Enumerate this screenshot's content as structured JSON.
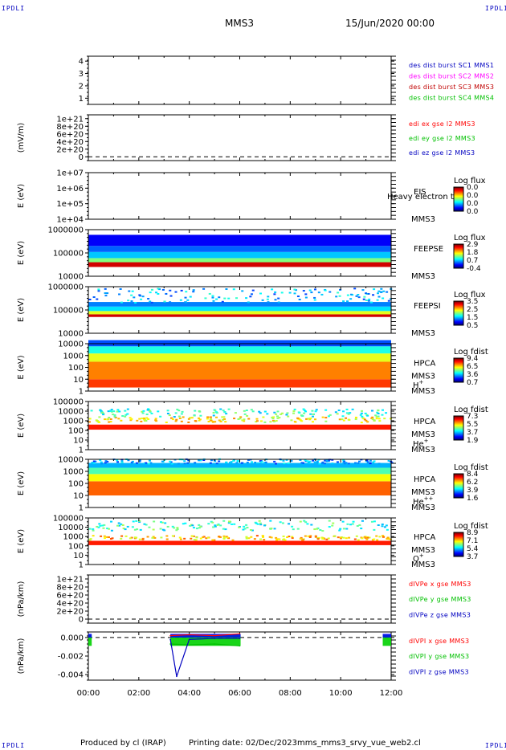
{
  "header": {
    "spacecraft": "MMS3",
    "date": "15/Jun/2020 00:00",
    "corner_label": "IPDLI"
  },
  "footer": {
    "produced_by": "Produced by cl (IRAP)",
    "printing_date": "Printing date: 02/Dec/2023",
    "script_name": "mms_mms3_srvy_vue_web2.cl"
  },
  "colors": {
    "red": "#ff0000",
    "green": "#00d000",
    "blue": "#0000ff",
    "magenta": "#ff00ff",
    "dark_red": "#c00000"
  },
  "chart_data": {
    "type": "multi-panel time series / spectrogram",
    "xlim": [
      "00:00",
      "12:00"
    ],
    "x_tick_labels": [
      "00:00",
      "02:00",
      "04:00",
      "06:00",
      "08:00",
      "10:00",
      "12:00"
    ],
    "panels": [
      {
        "id": "des_burst",
        "type": "line",
        "ylabel": "",
        "ylim": [
          0.5,
          4.4
        ],
        "y_ticks": [
          "1",
          "2",
          "3",
          "4"
        ],
        "legend": [
          {
            "label": "des dist burst SC1 MMS1",
            "color": "#0000c0"
          },
          {
            "label": "des dist burst SC2 MMS2",
            "color": "#ff00ff"
          },
          {
            "label": "des dist burst SC3 MMS3",
            "color": "#c00000"
          },
          {
            "label": "des dist burst SC4 MMS4",
            "color": "#00c000"
          }
        ],
        "series": []
      },
      {
        "id": "edi_e",
        "type": "line",
        "ylabel": "(mV/m)",
        "ylim": [
          -1e+20,
          1.1e+21
        ],
        "y_ticks": [
          "0",
          "2e+20",
          "4e+20",
          "6e+20",
          "8e+20",
          "1e+21"
        ],
        "zero_line": true,
        "legend": [
          {
            "label": "edi ex gse l2 MMS3",
            "color": "#ff0000"
          },
          {
            "label": "edi ey gse l2 MMS3",
            "color": "#00c000"
          },
          {
            "label": "edi ez gse l2 MMS3",
            "color": "#0000c0"
          }
        ],
        "series": []
      },
      {
        "id": "eis",
        "type": "heatmap",
        "ylabel": "E (eV)",
        "ylim": [
          10000.0,
          10000000.0
        ],
        "log_y": true,
        "y_ticks": [
          "1e+04",
          "1e+05",
          "1e+06",
          "1e+07"
        ],
        "instrument": "EIS",
        "spacecraft": "MMS3",
        "overlay_text": "Heavy electron to",
        "colorbar": {
          "title": "Log flux",
          "ticks": [
            "0.0",
            "0.0",
            "0.0",
            "0.0"
          ]
        }
      },
      {
        "id": "feeps_e",
        "type": "heatmap",
        "ylabel": "E (eV)",
        "ylim": [
          10000,
          1000000
        ],
        "log_y": true,
        "y_ticks": [
          "10000",
          "100000",
          "1000000"
        ],
        "instrument": "FEEPSE",
        "spacecraft": "MMS3",
        "colorbar": {
          "title": "Log flux",
          "ticks": [
            "2.9",
            "1.8",
            "0.7",
            "-0.4"
          ]
        }
      },
      {
        "id": "feeps_i",
        "type": "heatmap",
        "ylabel": "E (eV)",
        "ylim": [
          10000,
          1000000
        ],
        "log_y": true,
        "y_ticks": [
          "10000",
          "100000",
          "1000000"
        ],
        "instrument": "FEEPSI",
        "spacecraft": "MMS3",
        "colorbar": {
          "title": "Log flux",
          "ticks": [
            "3.5",
            "2.5",
            "1.5",
            "0.5"
          ]
        }
      },
      {
        "id": "hpca_h",
        "type": "heatmap",
        "ylabel": "E (eV)",
        "ylim": [
          1,
          10000
        ],
        "log_y": true,
        "y_ticks": [
          "1",
          "10",
          "100",
          "1000",
          "10000"
        ],
        "instrument": "HPCA",
        "spacecraft": "MMS3",
        "species": "H",
        "species_sup": "+",
        "colorbar": {
          "title": "Log fdist",
          "ticks": [
            "9.4",
            "6.5",
            "3.6",
            "0.7"
          ]
        }
      },
      {
        "id": "hpca_he1",
        "type": "heatmap",
        "ylabel": "E (eV)",
        "ylim": [
          1,
          100000
        ],
        "log_y": true,
        "y_ticks": [
          "1",
          "10",
          "100",
          "1000",
          "10000",
          "100000"
        ],
        "instrument": "HPCA",
        "spacecraft": "MMS3",
        "species": "He",
        "species_sup": "+",
        "colorbar": {
          "title": "Log fdist",
          "ticks": [
            "7.3",
            "5.5",
            "3.7",
            "1.9"
          ]
        }
      },
      {
        "id": "hpca_he2",
        "type": "heatmap",
        "ylabel": "E (eV)",
        "ylim": [
          1,
          10000
        ],
        "log_y": true,
        "y_ticks": [
          "1",
          "10",
          "100",
          "1000",
          "10000"
        ],
        "instrument": "HPCA",
        "spacecraft": "MMS3",
        "species": "He",
        "species_sup": "++",
        "colorbar": {
          "title": "Log fdist",
          "ticks": [
            "8.4",
            "6.2",
            "3.9",
            "1.6"
          ]
        }
      },
      {
        "id": "hpca_o",
        "type": "heatmap",
        "ylabel": "E (eV)",
        "ylim": [
          1,
          100000
        ],
        "log_y": true,
        "y_ticks": [
          "1",
          "10",
          "100",
          "1000",
          "10000",
          "100000"
        ],
        "instrument": "HPCA",
        "spacecraft": "MMS3",
        "species": "O",
        "species_sup": "+",
        "colorbar": {
          "title": "Log fdist",
          "ticks": [
            "8.9",
            "7.1",
            "5.4",
            "3.7"
          ]
        }
      },
      {
        "id": "divpe",
        "type": "line",
        "ylabel": "(nPa/km)",
        "ylim": [
          -1e+20,
          1.1e+21
        ],
        "y_ticks": [
          "0",
          "2e+20",
          "4e+20",
          "6e+20",
          "8e+20",
          "1e+21"
        ],
        "zero_line": true,
        "legend": [
          {
            "label": "dIVPe x gse MMS3",
            "color": "#ff0000"
          },
          {
            "label": "dIVPe y gse MMS3",
            "color": "#00c000"
          },
          {
            "label": "dIVPe z gse MMS3",
            "color": "#0000c0"
          }
        ],
        "series": []
      },
      {
        "id": "divpi",
        "type": "line",
        "ylabel": "(nPa/km)",
        "ylim": [
          -0.0046,
          0.0006
        ],
        "y_ticks": [
          "-0.004",
          "-0.002",
          "0.000"
        ],
        "zero_line": true,
        "legend": [
          {
            "label": "dIVPI x gse MMS3",
            "color": "#ff0000"
          },
          {
            "label": "dIVPI y gse MMS3",
            "color": "#00c000"
          },
          {
            "label": "dIVPI z gse MMS3",
            "color": "#0000c0"
          }
        ],
        "data_intervals": [
          [
            "00:00",
            "00:08"
          ],
          [
            "03:15",
            "06:02"
          ],
          [
            "11:40",
            "12:00"
          ]
        ],
        "series": [
          {
            "name": "dIVPI x gse MMS3",
            "color": "#ff0000",
            "x": [
              "03:15",
              "04:00",
              "05:00",
              "06:00"
            ],
            "y": [
              0.0002,
              0.0003,
              0.0002,
              0.0004
            ]
          },
          {
            "name": "dIVPI y gse MMS3",
            "color": "#00c000",
            "x": [
              "03:15",
              "04:00",
              "05:00",
              "06:00"
            ],
            "y": [
              -0.0007,
              -0.0008,
              -0.0007,
              -0.0009
            ]
          },
          {
            "name": "dIVPI z gse MMS3",
            "color": "#0000c0",
            "x": [
              "03:15",
              "03:30",
              "04:00",
              "05:00",
              "06:00"
            ],
            "y": [
              -0.0002,
              -0.0042,
              -0.0002,
              -0.0001,
              -0.0001
            ]
          }
        ]
      }
    ]
  }
}
